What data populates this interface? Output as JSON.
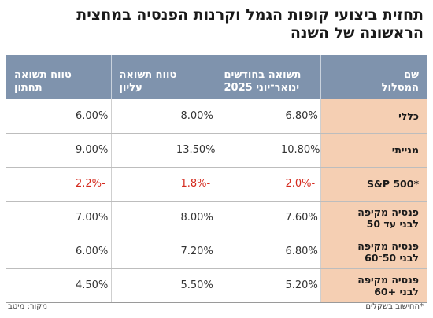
{
  "title": "תחזית ביצועי קופות הגמל וקרנות הפנסיה במחצית הראשונה של השנה",
  "table": {
    "headers": [
      "שם\nהמסלול",
      "תשואה בחודשים\nינואר־יוני 2025",
      "טווח תשואה\nעליון",
      "טווח תשואה\nתחתון"
    ],
    "rows": [
      {
        "name": "כללי",
        "values": [
          "6.80%",
          "8.00%",
          "6.00%"
        ],
        "negative": false
      },
      {
        "name": "מנייתי",
        "values": [
          "10.80%",
          "13.50%",
          "9.00%"
        ],
        "negative": false
      },
      {
        "name": "*S&P 500",
        "values": [
          "-2.0%",
          "-1.8%",
          "-2.2%"
        ],
        "negative": true
      },
      {
        "name": "פנסיה מקיפה\nלבני עד 50",
        "values": [
          "7.60%",
          "8.00%",
          "7.00%"
        ],
        "negative": false
      },
      {
        "name": "פנסיה מקיפה\nלבני 50־60",
        "values": [
          "6.80%",
          "7.20%",
          "6.00%"
        ],
        "negative": false
      },
      {
        "name": "פנסיה מקיפה\nלבני +60",
        "values": [
          "5.20%",
          "5.50%",
          "4.50%"
        ],
        "negative": false
      }
    ]
  },
  "footnote": "*החישוב בשקלים",
  "source": "מקור: מיטב",
  "colors": {
    "header_bg": "#7f93ad",
    "name_cell_bg": "#f5cfb3",
    "negative": "#d42a1e"
  }
}
